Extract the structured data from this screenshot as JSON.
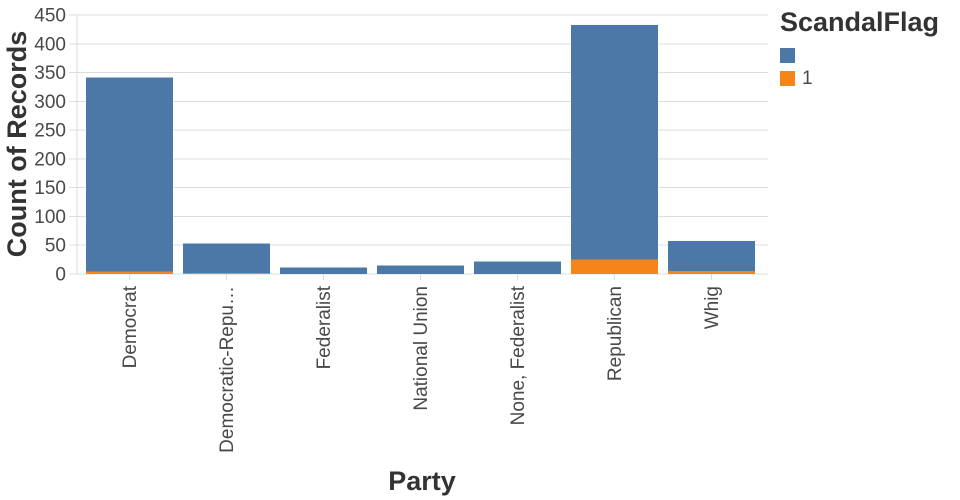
{
  "chart_data": {
    "type": "bar",
    "stacked": true,
    "xlabel": "Party",
    "ylabel": "Count of Records",
    "categories": [
      "Democrat",
      "Democratic-Repu…",
      "Federalist",
      "National Union",
      "None, Federalist",
      "Republican",
      "Whig"
    ],
    "series": [
      {
        "name": "1",
        "color": "#f58518",
        "values": [
          4,
          2,
          0,
          0,
          0,
          25,
          5
        ]
      },
      {
        "name": "",
        "color": "#4c78a8",
        "values": [
          337,
          51,
          11,
          15,
          22,
          408,
          52
        ]
      }
    ],
    "totals": [
      341,
      53,
      11,
      15,
      22,
      433,
      57
    ],
    "ylim": [
      0,
      450
    ],
    "yticks": [
      0,
      50,
      100,
      150,
      200,
      250,
      300,
      350,
      400,
      450
    ],
    "grid": true,
    "legend_position": "right"
  },
  "legend": {
    "title": "ScandalFlag",
    "items": [
      {
        "label": "",
        "color": "#4c78a8"
      },
      {
        "label": "1",
        "color": "#f58518"
      }
    ]
  },
  "colors": {
    "bar_blue": "#4c78a8",
    "bar_orange": "#f58518",
    "grid": "#dddddd",
    "tick_label": "#494949",
    "title": "#333333"
  }
}
